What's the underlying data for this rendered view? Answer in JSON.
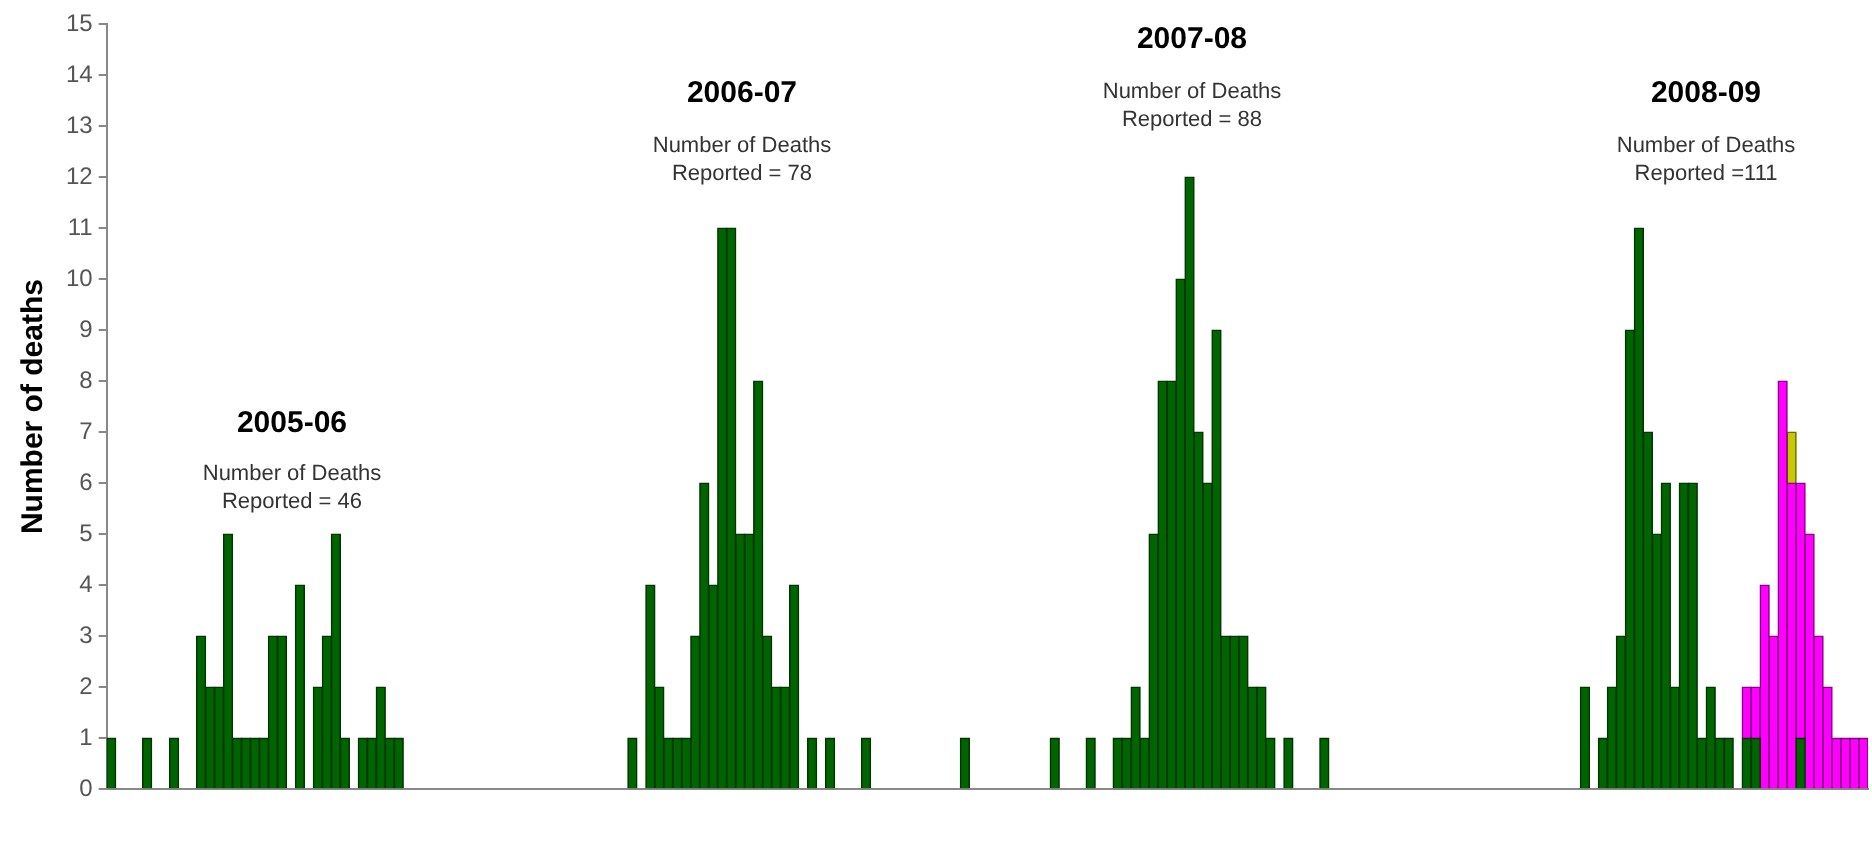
{
  "chart_data": {
    "type": "bar",
    "stacked": true,
    "ylabel": "Number of deaths",
    "ylim": [
      0,
      15
    ],
    "yticks": [
      0,
      1,
      2,
      3,
      4,
      5,
      6,
      7,
      8,
      9,
      10,
      11,
      12,
      13,
      14,
      15
    ],
    "grid": false,
    "legend": false,
    "annotations": [
      "2005-06",
      "Number of Deaths Reported = 46",
      "2006-07",
      "Number of Deaths Reported = 78",
      "2007-08",
      "Number of Deaths Reported = 88",
      "2008-09",
      "Number of Deaths Reported =111"
    ],
    "categories": [
      null,
      null,
      null,
      null,
      null,
      null,
      null,
      null,
      null,
      null,
      null,
      null,
      null,
      null,
      null,
      null,
      null,
      null,
      null,
      null,
      null,
      null,
      null,
      null,
      null,
      null,
      null,
      null,
      null,
      null,
      null,
      null,
      null,
      null,
      null,
      null,
      null,
      null,
      null,
      null,
      null,
      null,
      null,
      null,
      null,
      null,
      null,
      null,
      null,
      null,
      null,
      null,
      null,
      null,
      null,
      null,
      null,
      null,
      null,
      null,
      null,
      null,
      null,
      null,
      null,
      null,
      null,
      null,
      null,
      null,
      null,
      null,
      null,
      null,
      null,
      null,
      null,
      null,
      null,
      null,
      null,
      null,
      null,
      null,
      null,
      null,
      null,
      null,
      null,
      null,
      null,
      null,
      null,
      null,
      null,
      null,
      null,
      null,
      null,
      null,
      null,
      null,
      null,
      null,
      null,
      null,
      null,
      null,
      null,
      null,
      null,
      null,
      null,
      null,
      null,
      null,
      null,
      null,
      null,
      null,
      null,
      null,
      null,
      null,
      null,
      null,
      null,
      null,
      null,
      null,
      null,
      null,
      null,
      null,
      null,
      null,
      null,
      null,
      null,
      null,
      null,
      null,
      null,
      null,
      null,
      null,
      null,
      null,
      null,
      null,
      null,
      null,
      null,
      null,
      null,
      null,
      null,
      null,
      null,
      null,
      null,
      null,
      null,
      null,
      null,
      null,
      null,
      null,
      null,
      null,
      null,
      null,
      null,
      null,
      null,
      null,
      null,
      null,
      null,
      null,
      null,
      null,
      null,
      null,
      null,
      null,
      null,
      null,
      null,
      null,
      null,
      null,
      null,
      null,
      null,
      null
    ],
    "series": [
      {
        "color": "#006400",
        "values": [
          1,
          0,
          0,
          0,
          1,
          0,
          0,
          1,
          0,
          0,
          3,
          2,
          2,
          5,
          1,
          1,
          1,
          1,
          3,
          3,
          0,
          4,
          0,
          2,
          3,
          5,
          1,
          0,
          1,
          1,
          2,
          1,
          1,
          0,
          0,
          0,
          0,
          0,
          0,
          0,
          0,
          0,
          0,
          0,
          0,
          0,
          0,
          0,
          0,
          0,
          0,
          0,
          0,
          0,
          0,
          0,
          0,
          0,
          1,
          0,
          4,
          2,
          1,
          1,
          1,
          3,
          6,
          4,
          11,
          11,
          5,
          5,
          8,
          3,
          2,
          2,
          4,
          0,
          1,
          0,
          1,
          0,
          0,
          0,
          1,
          0,
          0,
          0,
          0,
          0,
          0,
          0,
          0,
          0,
          0,
          1,
          0,
          0,
          0,
          0,
          0,
          0,
          0,
          0,
          0,
          1,
          0,
          0,
          0,
          1,
          0,
          0,
          1,
          1,
          2,
          1,
          5,
          8,
          8,
          10,
          12,
          7,
          6,
          9,
          3,
          3,
          3,
          2,
          2,
          1,
          0,
          1,
          0,
          0,
          0,
          1,
          0,
          0,
          0,
          0,
          0,
          0,
          0,
          0,
          0,
          0,
          0,
          0,
          0,
          0,
          0,
          0,
          0,
          0,
          0,
          0,
          0,
          0,
          0,
          0,
          0,
          0,
          0,
          0,
          2,
          0,
          1,
          2,
          3,
          9,
          11,
          7,
          5,
          6,
          2,
          6,
          6,
          1,
          2,
          1,
          1,
          0,
          1,
          1,
          0,
          0,
          0,
          0,
          1,
          0,
          0,
          0,
          0,
          0,
          0,
          0
        ]
      },
      {
        "color": "#ff00ff",
        "values": [
          0,
          0,
          0,
          0,
          0,
          0,
          0,
          0,
          0,
          0,
          0,
          0,
          0,
          0,
          0,
          0,
          0,
          0,
          0,
          0,
          0,
          0,
          0,
          0,
          0,
          0,
          0,
          0,
          0,
          0,
          0,
          0,
          0,
          0,
          0,
          0,
          0,
          0,
          0,
          0,
          0,
          0,
          0,
          0,
          0,
          0,
          0,
          0,
          0,
          0,
          0,
          0,
          0,
          0,
          0,
          0,
          0,
          0,
          0,
          0,
          0,
          0,
          0,
          0,
          0,
          0,
          0,
          0,
          0,
          0,
          0,
          0,
          0,
          0,
          0,
          0,
          0,
          0,
          0,
          0,
          0,
          0,
          0,
          0,
          0,
          0,
          0,
          0,
          0,
          0,
          0,
          0,
          0,
          0,
          0,
          0,
          0,
          0,
          0,
          0,
          0,
          0,
          0,
          0,
          0,
          0,
          0,
          0,
          0,
          0,
          0,
          0,
          0,
          0,
          0,
          0,
          0,
          0,
          0,
          0,
          0,
          0,
          0,
          0,
          0,
          0,
          0,
          0,
          0,
          0,
          0,
          0,
          0,
          0,
          0,
          0,
          0,
          0,
          0,
          0,
          0,
          0,
          0,
          0,
          0,
          0,
          0,
          0,
          0,
          0,
          0,
          0,
          0,
          0,
          0,
          0,
          0,
          0,
          0,
          0,
          0,
          0,
          0,
          0,
          0,
          0,
          0,
          0,
          0,
          0,
          0,
          0,
          0,
          0,
          0,
          0,
          0,
          0,
          0,
          0,
          0,
          0,
          1,
          1,
          4,
          3,
          8,
          6,
          5,
          5,
          3,
          2,
          1,
          1,
          1,
          1
        ]
      },
      {
        "color": "#c8c800",
        "values": [
          0,
          0,
          0,
          0,
          0,
          0,
          0,
          0,
          0,
          0,
          0,
          0,
          0,
          0,
          0,
          0,
          0,
          0,
          0,
          0,
          0,
          0,
          0,
          0,
          0,
          0,
          0,
          0,
          0,
          0,
          0,
          0,
          0,
          0,
          0,
          0,
          0,
          0,
          0,
          0,
          0,
          0,
          0,
          0,
          0,
          0,
          0,
          0,
          0,
          0,
          0,
          0,
          0,
          0,
          0,
          0,
          0,
          0,
          0,
          0,
          0,
          0,
          0,
          0,
          0,
          0,
          0,
          0,
          0,
          0,
          0,
          0,
          0,
          0,
          0,
          0,
          0,
          0,
          0,
          0,
          0,
          0,
          0,
          0,
          0,
          0,
          0,
          0,
          0,
          0,
          0,
          0,
          0,
          0,
          0,
          0,
          0,
          0,
          0,
          0,
          0,
          0,
          0,
          0,
          0,
          0,
          0,
          0,
          0,
          0,
          0,
          0,
          0,
          0,
          0,
          0,
          0,
          0,
          0,
          0,
          0,
          0,
          0,
          0,
          0,
          0,
          0,
          0,
          0,
          0,
          0,
          0,
          0,
          0,
          0,
          0,
          0,
          0,
          0,
          0,
          0,
          0,
          0,
          0,
          0,
          0,
          0,
          0,
          0,
          0,
          0,
          0,
          0,
          0,
          0,
          0,
          0,
          0,
          0,
          0,
          0,
          0,
          0,
          0,
          0,
          0,
          0,
          0,
          0,
          0,
          0,
          0,
          0,
          0,
          0,
          0,
          0,
          0,
          0,
          0,
          0,
          0,
          0,
          0,
          0,
          0,
          0,
          1,
          0,
          0,
          0,
          0,
          0,
          0,
          0,
          0
        ]
      }
    ]
  }
}
